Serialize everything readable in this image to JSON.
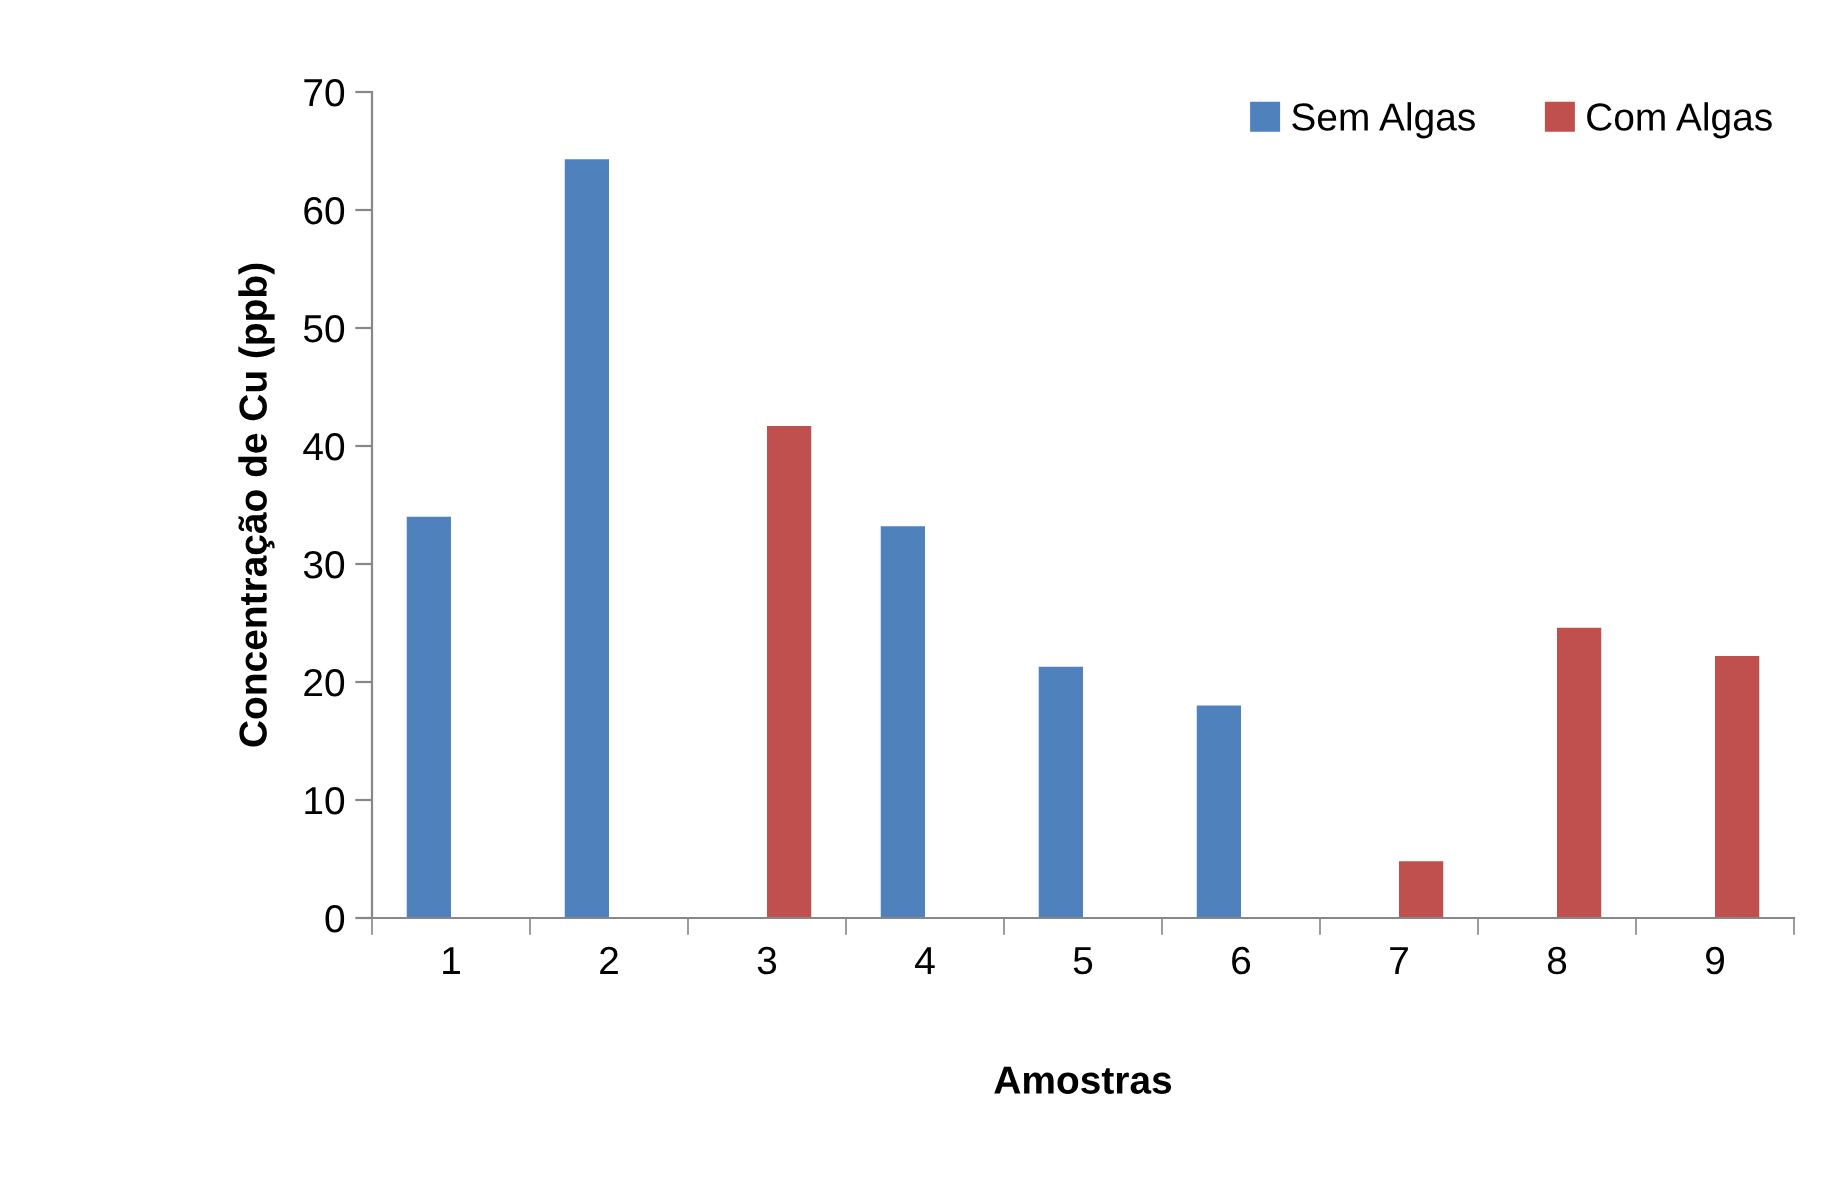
{
  "chart_data": {
    "type": "bar",
    "xlabel": "Amostras",
    "ylabel": "Concentração de Cu (ppb)",
    "categories": [
      "1",
      "2",
      "3",
      "4",
      "5",
      "6",
      "7",
      "8",
      "9"
    ],
    "series": [
      {
        "name": "Sem Algas",
        "color": "#4f81bd",
        "values": [
          34.0,
          64.3,
          null,
          33.2,
          21.3,
          18.0,
          null,
          null,
          null
        ]
      },
      {
        "name": "Com Algas",
        "color": "#c0504d",
        "values": [
          null,
          null,
          41.7,
          null,
          null,
          null,
          4.8,
          24.6,
          22.2
        ]
      }
    ],
    "ylim": [
      0,
      70
    ],
    "yticks": [
      0,
      10,
      20,
      30,
      40,
      50,
      60,
      70
    ],
    "grid": false,
    "legend": "top right"
  }
}
